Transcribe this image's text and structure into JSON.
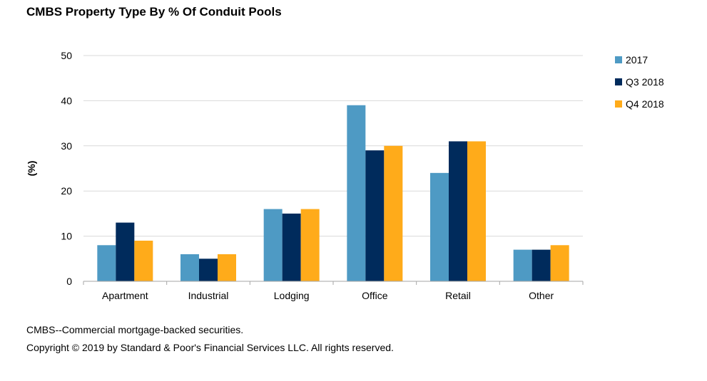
{
  "title": "CMBS Property Type By % Of Conduit Pools",
  "footnotes": [
    "CMBS--Commercial mortgage-backed securities.",
    "Copyright © 2019 by Standard & Poor's Financial Services LLC. All rights reserved."
  ],
  "chart_data": {
    "type": "bar",
    "title": "CMBS Property Type By % Of Conduit Pools",
    "xlabel": "",
    "ylabel": "(%)",
    "ylim": [
      0,
      50
    ],
    "yticks": [
      0,
      10,
      20,
      30,
      40,
      50
    ],
    "grid": true,
    "legend_position": "right",
    "categories": [
      "Apartment",
      "Industrial",
      "Lodging",
      "Office",
      "Retail",
      "Other"
    ],
    "series": [
      {
        "name": "2017",
        "color": "#4e9ac4",
        "values": [
          8,
          6,
          16,
          39,
          24,
          7
        ]
      },
      {
        "name": "Q3 2018",
        "color": "#002b5c",
        "values": [
          13,
          5,
          15,
          29,
          31,
          7
        ]
      },
      {
        "name": "Q4 2018",
        "color": "#ffab1a",
        "values": [
          9,
          6,
          16,
          30,
          31,
          8
        ]
      }
    ]
  }
}
